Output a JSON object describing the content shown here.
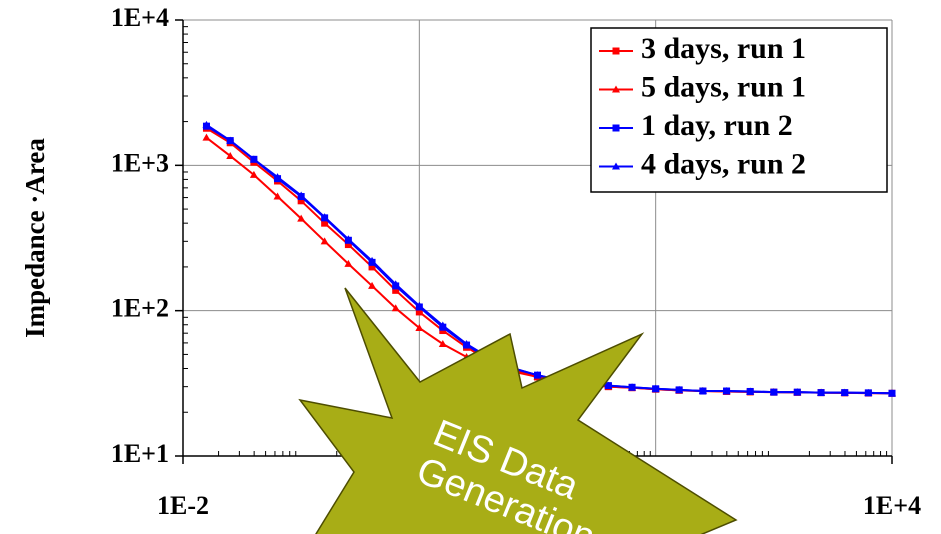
{
  "chart_data": {
    "type": "line",
    "ylabel": "Impedance ·Area",
    "annotation": [
      "EIS Data",
      "Generation"
    ],
    "x": [
      0.0158,
      0.0251,
      0.0398,
      0.0631,
      0.1,
      0.158,
      0.251,
      0.398,
      0.631,
      1,
      1.58,
      2.51,
      3.98,
      6.31,
      10,
      15.8,
      25.1,
      39.8,
      63.1,
      100,
      158,
      251,
      398,
      631,
      1000,
      1580,
      2510,
      3980,
      6310,
      10000
    ],
    "series": [
      {
        "name": "3 days, run 1",
        "color": "#ff0000",
        "marker": "square",
        "values": [
          1800,
          1430,
          1050,
          780,
          570,
          400,
          285,
          200,
          138,
          98,
          73,
          56,
          45,
          39,
          35,
          32.5,
          31,
          30,
          29.5,
          28.8,
          28.3,
          28,
          27.8,
          27.6,
          27.5,
          27.4,
          27.3,
          27.2,
          27.1,
          27
        ]
      },
      {
        "name": "5 days, run 1",
        "color": "#ff0000",
        "marker": "triangle",
        "values": [
          1550,
          1160,
          860,
          610,
          430,
          300,
          210,
          148,
          104,
          76,
          59,
          48,
          42,
          38,
          35,
          32.5,
          31,
          30,
          29.5,
          28.8,
          28.3,
          28,
          27.8,
          27.6,
          27.5,
          27.4,
          27.3,
          27.2,
          27.1,
          27
        ]
      },
      {
        "name": "1 day, run 2",
        "color": "#0000ff",
        "marker": "square",
        "values": [
          1860,
          1480,
          1100,
          810,
          610,
          435,
          305,
          215,
          148,
          106,
          77,
          58,
          46,
          40,
          36,
          33,
          31.5,
          30.5,
          29.7,
          29,
          28.5,
          28,
          28,
          27.8,
          27.5,
          27.5,
          27.3,
          27.3,
          27.2,
          27
        ]
      },
      {
        "name": "4 days, run 2",
        "color": "#0000ff",
        "marker": "triangle",
        "values": [
          1900,
          1480,
          1100,
          830,
          620,
          440,
          310,
          220,
          152,
          108,
          79,
          59,
          47,
          40,
          36,
          33,
          31.5,
          30.5,
          29.7,
          29,
          28.5,
          28,
          28,
          27.8,
          27.5,
          27.5,
          27.3,
          27.3,
          27.2,
          27
        ]
      }
    ],
    "xscale": "log",
    "yscale": "log",
    "xlim": [
      0.01,
      10000
    ],
    "ylim": [
      10,
      10000
    ],
    "xticks": [
      {
        "value": 0.01,
        "label": "1E-2"
      },
      {
        "value": 10000,
        "label": "1E+4"
      }
    ],
    "xgrid": [
      1,
      100
    ],
    "yticks": [
      {
        "value": 10,
        "label": "1E+1"
      },
      {
        "value": 100,
        "label": "1E+2"
      },
      {
        "value": 1000,
        "label": "1E+3"
      },
      {
        "value": 10000,
        "label": "1E+4"
      }
    ],
    "grid": true,
    "minor_ticks": true,
    "legend": "upper right",
    "annotation_color": "#a8ad16"
  }
}
